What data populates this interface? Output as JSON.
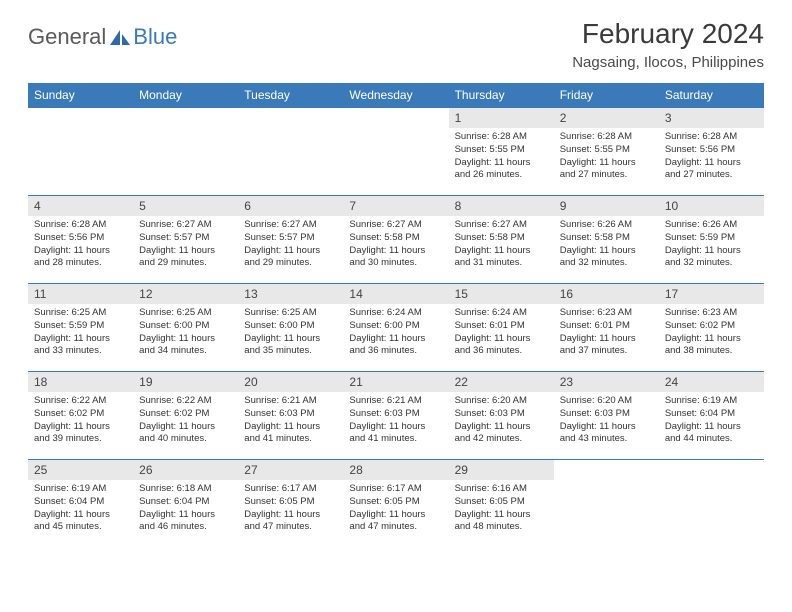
{
  "logo": {
    "general": "General",
    "blue": "Blue"
  },
  "title": "February 2024",
  "location": "Nagsaing, Ilocos, Philippines",
  "colors": {
    "header_bg": "#3a7ab8",
    "header_text": "#ffffff",
    "daynum_bg": "#e8e8e8",
    "text": "#333333",
    "border": "#3a7ab8",
    "logo_gray": "#5a5a5a",
    "logo_blue": "#3a7ab8"
  },
  "day_headers": [
    "Sunday",
    "Monday",
    "Tuesday",
    "Wednesday",
    "Thursday",
    "Friday",
    "Saturday"
  ],
  "weeks": [
    [
      null,
      null,
      null,
      null,
      {
        "n": "1",
        "sr": "6:28 AM",
        "ss": "5:55 PM",
        "dl": "11 hours and 26 minutes."
      },
      {
        "n": "2",
        "sr": "6:28 AM",
        "ss": "5:55 PM",
        "dl": "11 hours and 27 minutes."
      },
      {
        "n": "3",
        "sr": "6:28 AM",
        "ss": "5:56 PM",
        "dl": "11 hours and 27 minutes."
      }
    ],
    [
      {
        "n": "4",
        "sr": "6:28 AM",
        "ss": "5:56 PM",
        "dl": "11 hours and 28 minutes."
      },
      {
        "n": "5",
        "sr": "6:27 AM",
        "ss": "5:57 PM",
        "dl": "11 hours and 29 minutes."
      },
      {
        "n": "6",
        "sr": "6:27 AM",
        "ss": "5:57 PM",
        "dl": "11 hours and 29 minutes."
      },
      {
        "n": "7",
        "sr": "6:27 AM",
        "ss": "5:58 PM",
        "dl": "11 hours and 30 minutes."
      },
      {
        "n": "8",
        "sr": "6:27 AM",
        "ss": "5:58 PM",
        "dl": "11 hours and 31 minutes."
      },
      {
        "n": "9",
        "sr": "6:26 AM",
        "ss": "5:58 PM",
        "dl": "11 hours and 32 minutes."
      },
      {
        "n": "10",
        "sr": "6:26 AM",
        "ss": "5:59 PM",
        "dl": "11 hours and 32 minutes."
      }
    ],
    [
      {
        "n": "11",
        "sr": "6:25 AM",
        "ss": "5:59 PM",
        "dl": "11 hours and 33 minutes."
      },
      {
        "n": "12",
        "sr": "6:25 AM",
        "ss": "6:00 PM",
        "dl": "11 hours and 34 minutes."
      },
      {
        "n": "13",
        "sr": "6:25 AM",
        "ss": "6:00 PM",
        "dl": "11 hours and 35 minutes."
      },
      {
        "n": "14",
        "sr": "6:24 AM",
        "ss": "6:00 PM",
        "dl": "11 hours and 36 minutes."
      },
      {
        "n": "15",
        "sr": "6:24 AM",
        "ss": "6:01 PM",
        "dl": "11 hours and 36 minutes."
      },
      {
        "n": "16",
        "sr": "6:23 AM",
        "ss": "6:01 PM",
        "dl": "11 hours and 37 minutes."
      },
      {
        "n": "17",
        "sr": "6:23 AM",
        "ss": "6:02 PM",
        "dl": "11 hours and 38 minutes."
      }
    ],
    [
      {
        "n": "18",
        "sr": "6:22 AM",
        "ss": "6:02 PM",
        "dl": "11 hours and 39 minutes."
      },
      {
        "n": "19",
        "sr": "6:22 AM",
        "ss": "6:02 PM",
        "dl": "11 hours and 40 minutes."
      },
      {
        "n": "20",
        "sr": "6:21 AM",
        "ss": "6:03 PM",
        "dl": "11 hours and 41 minutes."
      },
      {
        "n": "21",
        "sr": "6:21 AM",
        "ss": "6:03 PM",
        "dl": "11 hours and 41 minutes."
      },
      {
        "n": "22",
        "sr": "6:20 AM",
        "ss": "6:03 PM",
        "dl": "11 hours and 42 minutes."
      },
      {
        "n": "23",
        "sr": "6:20 AM",
        "ss": "6:03 PM",
        "dl": "11 hours and 43 minutes."
      },
      {
        "n": "24",
        "sr": "6:19 AM",
        "ss": "6:04 PM",
        "dl": "11 hours and 44 minutes."
      }
    ],
    [
      {
        "n": "25",
        "sr": "6:19 AM",
        "ss": "6:04 PM",
        "dl": "11 hours and 45 minutes."
      },
      {
        "n": "26",
        "sr": "6:18 AM",
        "ss": "6:04 PM",
        "dl": "11 hours and 46 minutes."
      },
      {
        "n": "27",
        "sr": "6:17 AM",
        "ss": "6:05 PM",
        "dl": "11 hours and 47 minutes."
      },
      {
        "n": "28",
        "sr": "6:17 AM",
        "ss": "6:05 PM",
        "dl": "11 hours and 47 minutes."
      },
      {
        "n": "29",
        "sr": "6:16 AM",
        "ss": "6:05 PM",
        "dl": "11 hours and 48 minutes."
      },
      null,
      null
    ]
  ],
  "labels": {
    "sunrise": "Sunrise: ",
    "sunset": "Sunset: ",
    "daylight": "Daylight: "
  }
}
